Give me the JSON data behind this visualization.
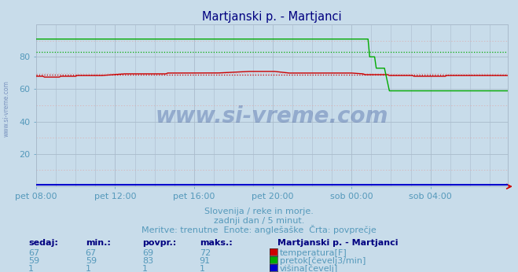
{
  "title": "Martjanski p. - Martjanci",
  "title_color": "#000080",
  "bg_color": "#c8dcea",
  "plot_bg_color": "#c8dcea",
  "xlabel": "",
  "ylabel": "",
  "xlim": [
    0,
    287
  ],
  "ylim": [
    0,
    100
  ],
  "yticks": [
    20,
    40,
    60,
    80
  ],
  "xtick_labels": [
    "pet 08:00",
    "pet 12:00",
    "pet 16:00",
    "pet 20:00",
    "sob 00:00",
    "sob 04:00"
  ],
  "xtick_positions": [
    0,
    48,
    96,
    144,
    192,
    240
  ],
  "temp_avg": 69,
  "pretok_avg": 83,
  "temp_color": "#cc0000",
  "pretok_color": "#00aa00",
  "visina_color": "#0000cc",
  "watermark": "www.si-vreme.com",
  "watermark_color": "#1a3a8a",
  "watermark_alpha": 0.3,
  "subtitle1": "Slovenija / reke in morje.",
  "subtitle2": "zadnji dan / 5 minut.",
  "subtitle3": "Meritve: trenutne  Enote: anglešaške  Črta: povprečje",
  "subtitle_color": "#5599bb",
  "legend_title": "Martjanski p. - Martjanci",
  "legend_title_color": "#000080",
  "legend_labels": [
    "temperatura[F]",
    "pretok[čevelj3/min]",
    "višina[čevelj]"
  ],
  "legend_colors": [
    "#cc0000",
    "#00aa00",
    "#0000cc"
  ],
  "table_headers": [
    "sedaj:",
    "min.:",
    "povpr.:",
    "maks.:"
  ],
  "table_data": [
    [
      67,
      67,
      69,
      72
    ],
    [
      59,
      59,
      83,
      91
    ],
    [
      1,
      1,
      1,
      1
    ]
  ],
  "table_color": "#5599bb",
  "table_bold_color": "#000080",
  "font_size": 9,
  "axis_label_color": "#5599bb",
  "tick_color": "#5599bb",
  "grid_major_color": "#aabbcc",
  "grid_minor_color_v": "#aabbcc",
  "grid_minor_color_h": "#ddaaaa"
}
